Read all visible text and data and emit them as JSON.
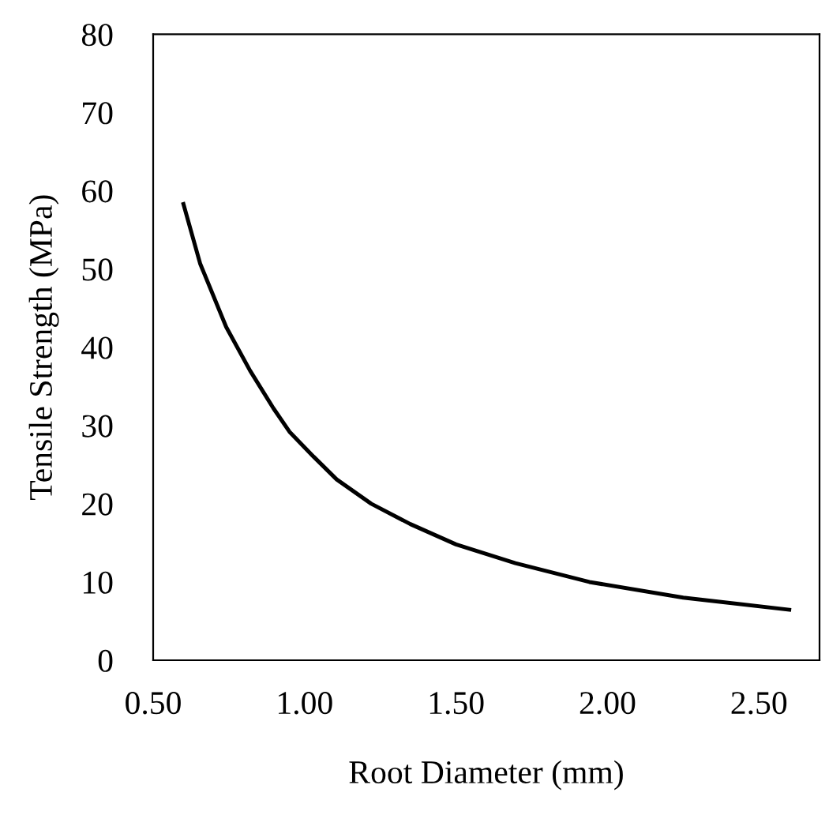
{
  "chart_data": {
    "type": "line",
    "xlabel": "Root Diameter (mm)",
    "ylabel": "Tensile Strength (MPa)",
    "x": [
      0.6,
      0.655,
      0.741,
      0.82,
      0.897,
      0.95,
      1.03,
      1.106,
      1.22,
      1.349,
      1.5,
      1.696,
      1.94,
      2.25,
      2.6
    ],
    "series": [
      {
        "color": "#000000",
        "values": [
          58.3,
          50.7,
          42.6,
          37.0,
          32.2,
          29.2,
          26.0,
          23.1,
          20.0,
          17.4,
          14.8,
          12.4,
          10.0,
          8.0,
          6.45
        ]
      }
    ],
    "xlim": [
      0.5,
      2.7
    ],
    "xticks": [
      {
        "value": 0.5,
        "label": "0.50"
      },
      {
        "value": 1.0,
        "label": "1.00"
      },
      {
        "value": 1.5,
        "label": "1.50"
      },
      {
        "value": 2.0,
        "label": "2.00"
      },
      {
        "value": 2.5,
        "label": "2.50"
      }
    ],
    "ylim": [
      0,
      80
    ],
    "yticks": [
      0,
      10,
      20,
      30,
      40,
      50,
      60,
      70,
      80
    ],
    "grid": false,
    "legend": false,
    "marker": "none",
    "line_style": "solid"
  }
}
